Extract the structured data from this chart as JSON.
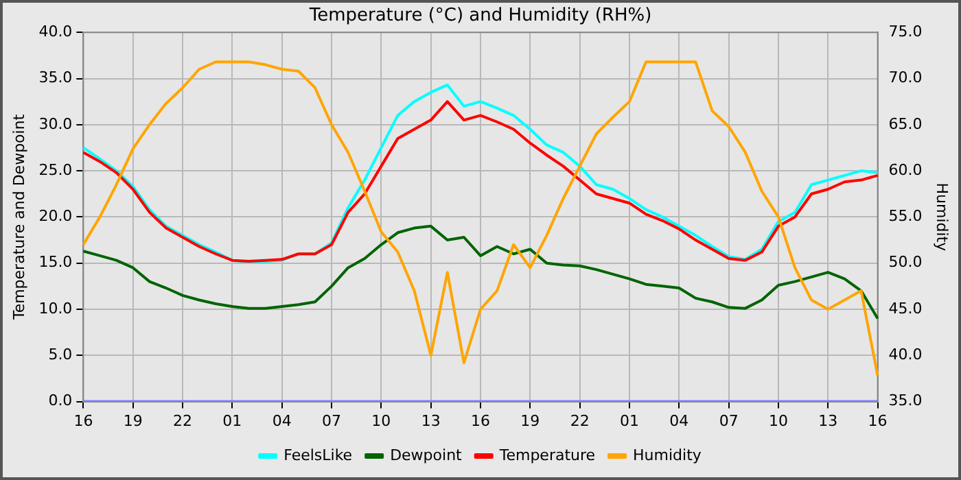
{
  "chart_data": {
    "type": "line",
    "title": "Temperature (°C) and Humidity (RH%)",
    "ylabel": "Temperature and Dewpoint",
    "y2label": "Humidity",
    "categories": [
      "16",
      null,
      null,
      "19",
      null,
      null,
      "22",
      null,
      null,
      "01",
      null,
      null,
      "04",
      null,
      null,
      "07",
      null,
      null,
      "10",
      null,
      null,
      "13",
      null,
      null,
      "16",
      null,
      null,
      "19",
      null,
      null,
      "22",
      null,
      null,
      "01",
      null,
      null,
      "04",
      null,
      null,
      "07",
      null,
      null,
      "10",
      null,
      null,
      "13",
      null,
      null,
      "16"
    ],
    "series": [
      {
        "name": "FeelsLike",
        "color": "#00ffff",
        "values": [
          27.5,
          26.3,
          25,
          23.3,
          20.8,
          19,
          18,
          17,
          16.2,
          15.3,
          15.1,
          15.2,
          15.3,
          16,
          16,
          17.2,
          21,
          24,
          27.5,
          31,
          32.5,
          33.5,
          34.3,
          32,
          32.5,
          31.8,
          31,
          29.5,
          27.8,
          27,
          25.5,
          23.5,
          23,
          22,
          20.8,
          20,
          19,
          18,
          16.8,
          15.7,
          15.4,
          16.5,
          19.5,
          20.5,
          23.5,
          24,
          24.5,
          25,
          24.8
        ]
      },
      {
        "name": "Dewpoint",
        "color": "#006400",
        "values": [
          16.3,
          15.8,
          15.3,
          14.5,
          13,
          12.3,
          11.5,
          11,
          10.6,
          10.3,
          10.1,
          10.1,
          10.3,
          10.5,
          10.8,
          12.5,
          14.5,
          15.5,
          17,
          18.3,
          18.8,
          19,
          17.5,
          17.8,
          15.8,
          16.8,
          16,
          16.5,
          15,
          14.8,
          14.7,
          14.3,
          13.8,
          13.3,
          12.7,
          12.5,
          12.3,
          11.2,
          10.8,
          10.2,
          10.1,
          11,
          12.6,
          13,
          13.5,
          14,
          13.3,
          12,
          9
        ]
      },
      {
        "name": "Temperature",
        "color": "#ff0000",
        "values": [
          27,
          26,
          24.8,
          23,
          20.5,
          18.8,
          17.8,
          16.8,
          16,
          15.3,
          15.2,
          15.3,
          15.4,
          16,
          16,
          17,
          20.5,
          22.5,
          25.5,
          28.5,
          29.5,
          30.5,
          32.5,
          30.5,
          31,
          30.3,
          29.5,
          28,
          26.7,
          25.5,
          24,
          22.5,
          22,
          21.5,
          20.3,
          19.6,
          18.7,
          17.5,
          16.5,
          15.5,
          15.3,
          16.2,
          19,
          20,
          22.5,
          23,
          23.8,
          24,
          24.5
        ]
      },
      {
        "name": "Humidity",
        "color": "#ffa500",
        "axis": "y2",
        "values": [
          52,
          55,
          58.5,
          62.4,
          65,
          67.3,
          69,
          71,
          71.8,
          71.8,
          71.8,
          71.5,
          71,
          70.8,
          69,
          65,
          62,
          57.8,
          53.4,
          51.2,
          47,
          40,
          49,
          39.2,
          45,
          47,
          52,
          49.5,
          53,
          57,
          60.5,
          64,
          65.8,
          67.5,
          71.8,
          71.8,
          71.8,
          71.8,
          66.5,
          64.8,
          62,
          57.8,
          55,
          49.5,
          46,
          45,
          46,
          47,
          37.8
        ]
      },
      {
        "color": "#8080ff",
        "values": [
          0,
          0,
          0,
          0,
          0,
          0,
          0,
          0,
          0,
          0,
          0,
          0,
          0,
          0,
          0,
          0,
          0,
          0,
          0,
          0,
          0,
          0,
          0,
          0,
          0,
          0,
          0,
          0,
          0,
          0,
          0,
          0,
          0,
          0,
          0,
          0,
          0,
          0,
          0,
          0,
          0,
          0,
          0,
          0,
          0,
          0,
          0,
          0,
          0
        ]
      }
    ],
    "ylim": [
      0,
      40
    ],
    "yticks": [
      {
        "value": 0,
        "label": "0.0"
      },
      {
        "value": 5,
        "label": "5.0"
      },
      {
        "value": 10,
        "label": "10.0"
      },
      {
        "value": 15,
        "label": "15.0"
      },
      {
        "value": 20,
        "label": "20.0"
      },
      {
        "value": 25,
        "label": "25.0"
      },
      {
        "value": 30,
        "label": "30.0"
      },
      {
        "value": 35,
        "label": "35.0"
      },
      {
        "value": 40,
        "label": "40.0"
      }
    ],
    "y2lim": [
      35,
      75
    ],
    "y2ticks": [
      {
        "value": 35,
        "label": "35.0"
      },
      {
        "value": 40,
        "label": "40.0"
      },
      {
        "value": 45,
        "label": "45.0"
      },
      {
        "value": 50,
        "label": "50.0"
      },
      {
        "value": 55,
        "label": "55.0"
      },
      {
        "value": 60,
        "label": "60.0"
      },
      {
        "value": 65,
        "label": "65.0"
      },
      {
        "value": 70,
        "label": "70.0"
      },
      {
        "value": 75,
        "label": "75.0"
      }
    ],
    "grid": true,
    "legend": "bottom",
    "marker": "none",
    "line_style": "solid"
  }
}
